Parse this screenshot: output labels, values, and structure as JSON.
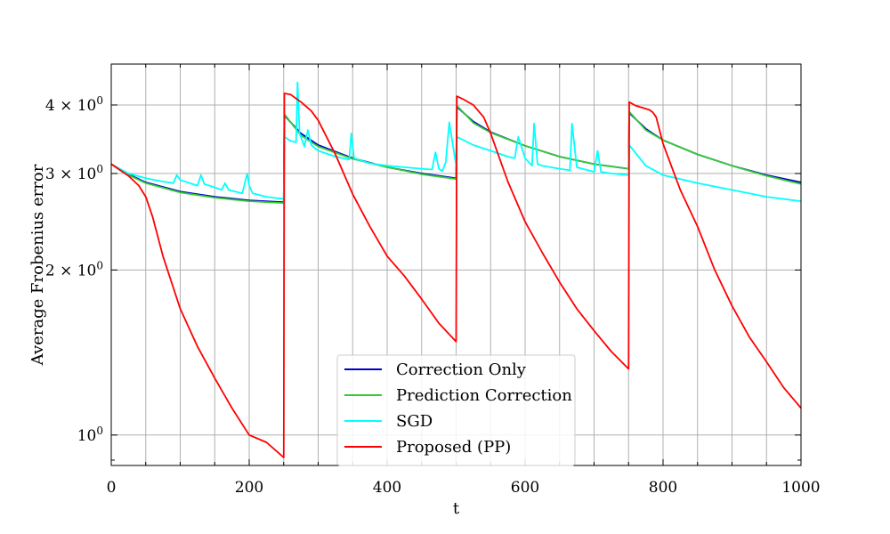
{
  "chart_data": {
    "type": "line",
    "title": "",
    "xlabel": "t",
    "ylabel": "Average Frobenius error",
    "xlim": [
      0,
      1000
    ],
    "ylim": [
      0.88,
      4.75
    ],
    "yscale": "log",
    "grid": true,
    "legend_position": "bottom-center",
    "x_ticks": [
      0,
      200,
      400,
      600,
      800,
      1000
    ],
    "x_tick_labels": [
      "0",
      "200",
      "400",
      "600",
      "800",
      "1000"
    ],
    "y_ticks": [
      {
        "value": 1,
        "mantissa": "",
        "exponent": "0"
      },
      {
        "value": 2,
        "mantissa": "2 × ",
        "exponent": "0"
      },
      {
        "value": 3,
        "mantissa": "3 × ",
        "exponent": "0"
      },
      {
        "value": 4,
        "mantissa": "4 × ",
        "exponent": "0"
      }
    ],
    "series": [
      {
        "name": "Correction Only",
        "color": "#0000cc",
        "x": [
          0,
          25,
          50,
          100,
          150,
          200,
          250,
          251,
          275,
          300,
          350,
          400,
          450,
          500,
          501,
          525,
          550,
          600,
          650,
          700,
          750,
          751,
          775,
          800,
          850,
          900,
          950,
          1000
        ],
        "y": [
          3.12,
          2.99,
          2.89,
          2.78,
          2.72,
          2.68,
          2.66,
          3.83,
          3.55,
          3.38,
          3.2,
          3.08,
          3.0,
          2.94,
          3.97,
          3.73,
          3.57,
          3.37,
          3.22,
          3.12,
          3.06,
          3.87,
          3.62,
          3.45,
          3.25,
          3.1,
          2.98,
          2.89
        ]
      },
      {
        "name": "Prediction Correction",
        "color": "#33cc33",
        "x": [
          0,
          25,
          50,
          100,
          150,
          200,
          250,
          251,
          275,
          300,
          350,
          400,
          450,
          500,
          501,
          525,
          550,
          600,
          650,
          700,
          750,
          751,
          775,
          800,
          850,
          900,
          950,
          1000
        ],
        "y": [
          3.12,
          2.98,
          2.88,
          2.77,
          2.71,
          2.67,
          2.65,
          3.85,
          3.52,
          3.36,
          3.19,
          3.08,
          2.99,
          2.93,
          3.99,
          3.71,
          3.56,
          3.37,
          3.22,
          3.12,
          3.06,
          3.89,
          3.6,
          3.45,
          3.25,
          3.1,
          2.97,
          2.87
        ]
      },
      {
        "name": "SGD",
        "color": "#00ffff",
        "x": [
          0,
          25,
          50,
          75,
          90,
          95,
          100,
          125,
          130,
          135,
          150,
          160,
          165,
          170,
          190,
          197,
          200,
          205,
          225,
          245,
          250,
          251,
          260,
          268,
          270,
          273,
          280,
          285,
          290,
          300,
          325,
          345,
          348,
          352,
          375,
          400,
          425,
          450,
          465,
          470,
          475,
          480,
          485,
          490,
          500,
          501,
          525,
          550,
          575,
          585,
          590,
          600,
          610,
          613,
          618,
          625,
          650,
          665,
          668,
          675,
          700,
          705,
          710,
          725,
          750,
          751,
          775,
          800,
          850,
          900,
          950,
          1000
        ],
        "y": [
          3.12,
          3.0,
          2.94,
          2.9,
          2.88,
          2.98,
          2.92,
          2.85,
          2.98,
          2.87,
          2.83,
          2.8,
          2.88,
          2.8,
          2.76,
          3.0,
          2.85,
          2.76,
          2.72,
          2.7,
          2.7,
          3.5,
          3.44,
          3.42,
          4.4,
          3.55,
          3.36,
          3.6,
          3.38,
          3.3,
          3.22,
          3.18,
          3.55,
          3.2,
          3.13,
          3.1,
          3.08,
          3.06,
          3.05,
          3.28,
          3.06,
          3.03,
          3.15,
          3.72,
          3.1,
          3.5,
          3.38,
          3.3,
          3.22,
          3.2,
          3.5,
          3.2,
          3.1,
          3.7,
          3.12,
          3.1,
          3.06,
          3.04,
          3.7,
          3.08,
          3.02,
          3.3,
          3.02,
          3.0,
          2.98,
          3.38,
          3.1,
          2.98,
          2.88,
          2.8,
          2.72,
          2.67
        ]
      },
      {
        "name": "Proposed (PP)",
        "color": "#ff0000",
        "x": [
          0,
          25,
          40,
          50,
          60,
          75,
          100,
          125,
          150,
          175,
          200,
          225,
          250,
          251,
          260,
          275,
          290,
          300,
          325,
          350,
          375,
          400,
          425,
          450,
          475,
          500,
          501,
          510,
          525,
          530,
          540,
          550,
          575,
          600,
          625,
          650,
          675,
          700,
          725,
          750,
          751,
          760,
          780,
          785,
          790,
          800,
          825,
          850,
          875,
          900,
          925,
          950,
          975,
          1000
        ],
        "y": [
          3.12,
          2.97,
          2.85,
          2.72,
          2.5,
          2.12,
          1.7,
          1.45,
          1.27,
          1.12,
          1.0,
          0.97,
          0.91,
          4.2,
          4.18,
          4.05,
          3.9,
          3.75,
          3.25,
          2.75,
          2.4,
          2.12,
          1.95,
          1.77,
          1.6,
          1.48,
          4.15,
          4.1,
          4.0,
          3.93,
          3.8,
          3.55,
          2.9,
          2.45,
          2.15,
          1.9,
          1.7,
          1.55,
          1.42,
          1.32,
          4.05,
          3.99,
          3.92,
          3.88,
          3.8,
          3.4,
          2.8,
          2.4,
          2.0,
          1.72,
          1.51,
          1.36,
          1.22,
          1.12
        ]
      }
    ]
  }
}
